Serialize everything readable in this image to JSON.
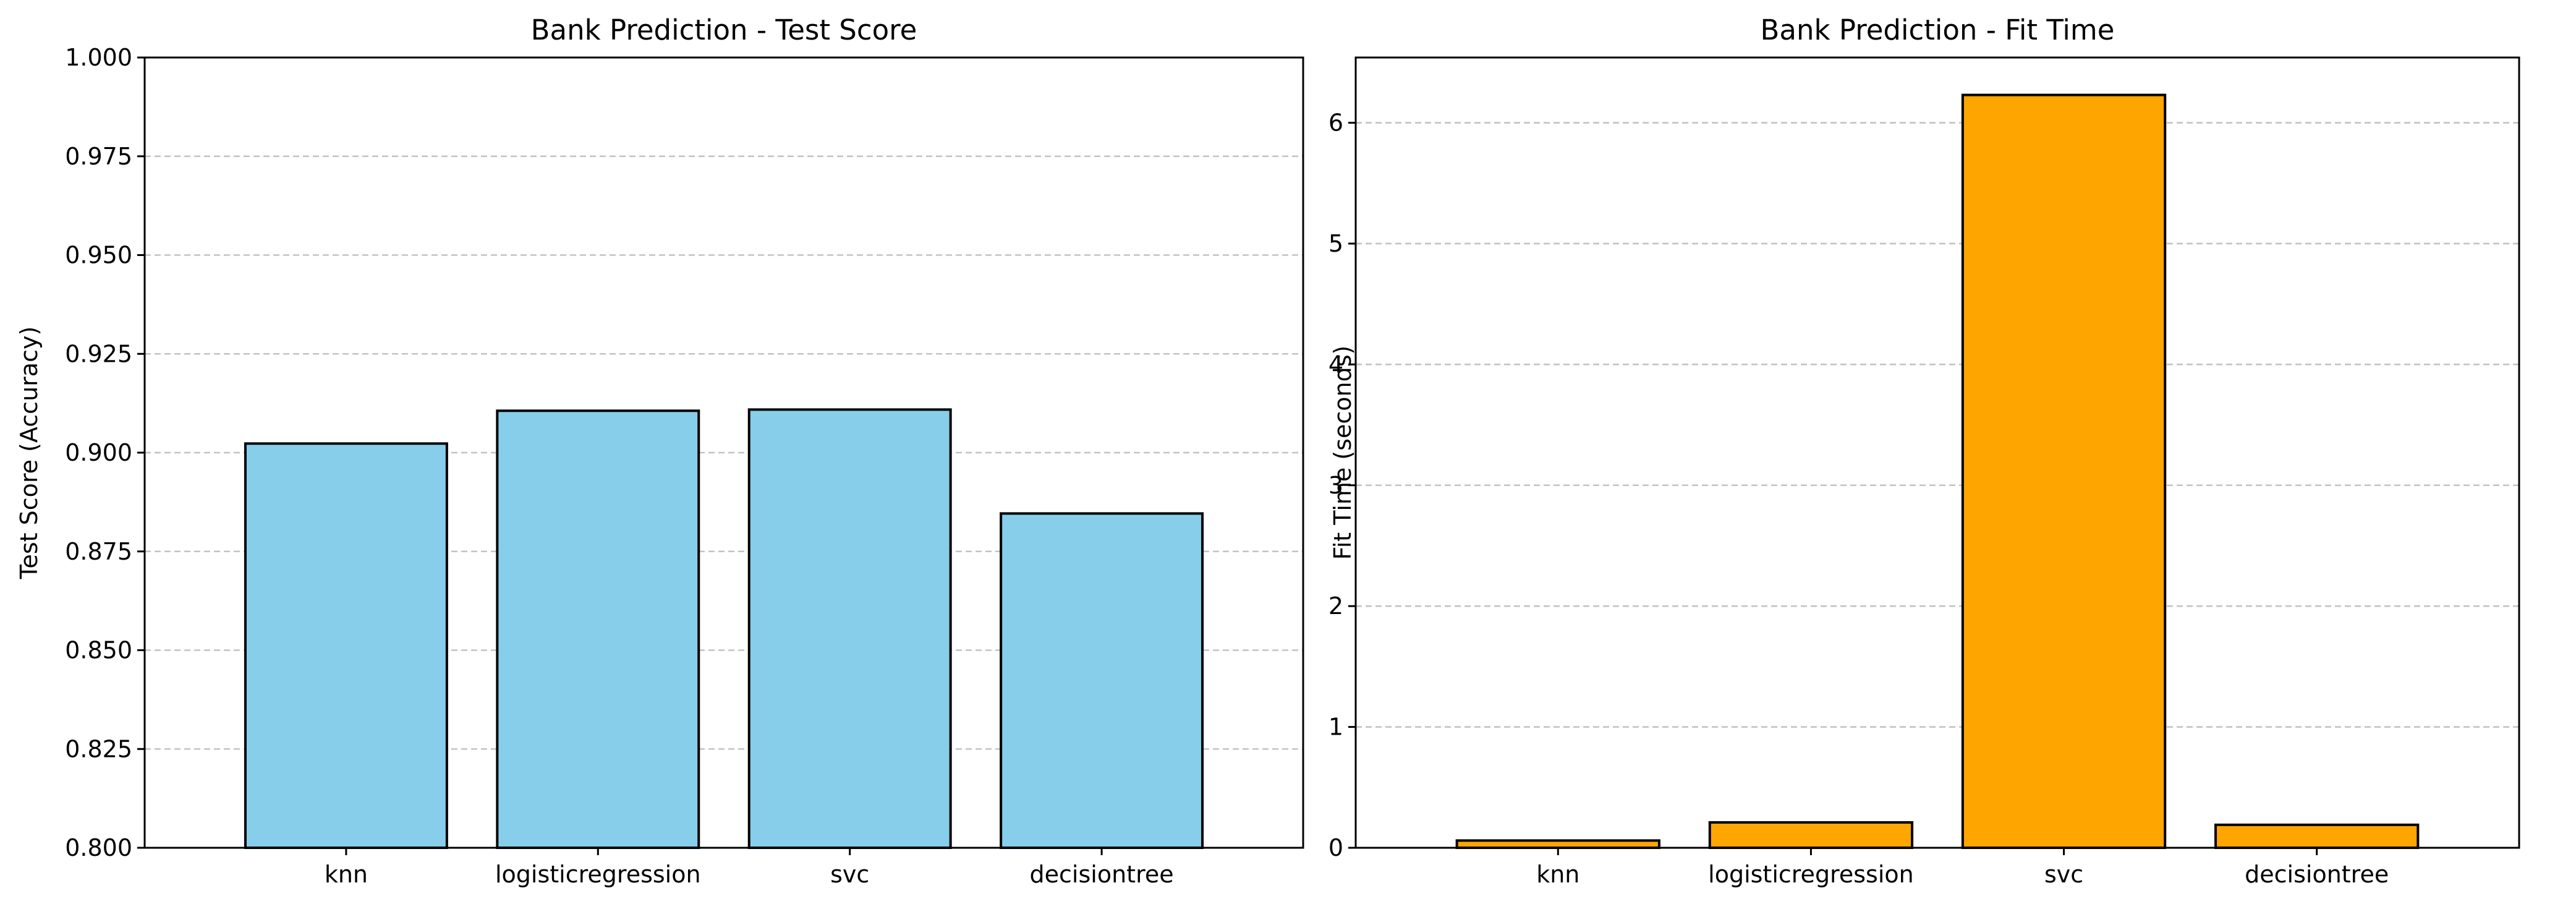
{
  "chart_data": [
    {
      "type": "bar",
      "title": "Bank Prediction - Test Score",
      "xlabel": "",
      "ylabel": "Test Score (Accuracy)",
      "categories": [
        "knn",
        "logisticregression",
        "svc",
        "decisiontree"
      ],
      "values": [
        0.9023,
        0.9106,
        0.9109,
        0.8846
      ],
      "ylim": [
        0.8,
        1.0
      ],
      "yticks": [
        0.8,
        0.825,
        0.85,
        0.875,
        0.9,
        0.925,
        0.95,
        0.975,
        1.0
      ],
      "ytick_labels": [
        "0.800",
        "0.825",
        "0.850",
        "0.875",
        "0.900",
        "0.925",
        "0.950",
        "0.975",
        "1.000"
      ],
      "color": "#87ceeb",
      "grid": "y",
      "legend": "none"
    },
    {
      "type": "bar",
      "title": "Bank Prediction - Fit Time",
      "xlabel": "",
      "ylabel": "Fit Time (seconds)",
      "categories": [
        "knn",
        "logisticregression",
        "svc",
        "decisiontree"
      ],
      "values": [
        0.06,
        0.21,
        6.23,
        0.19
      ],
      "ylim": [
        0,
        6.54
      ],
      "yticks": [
        0,
        1,
        2,
        3,
        4,
        5,
        6
      ],
      "ytick_labels": [
        "0",
        "1",
        "2",
        "3",
        "4",
        "5",
        "6"
      ],
      "color": "#ffa500",
      "grid": "y",
      "legend": "none"
    }
  ]
}
